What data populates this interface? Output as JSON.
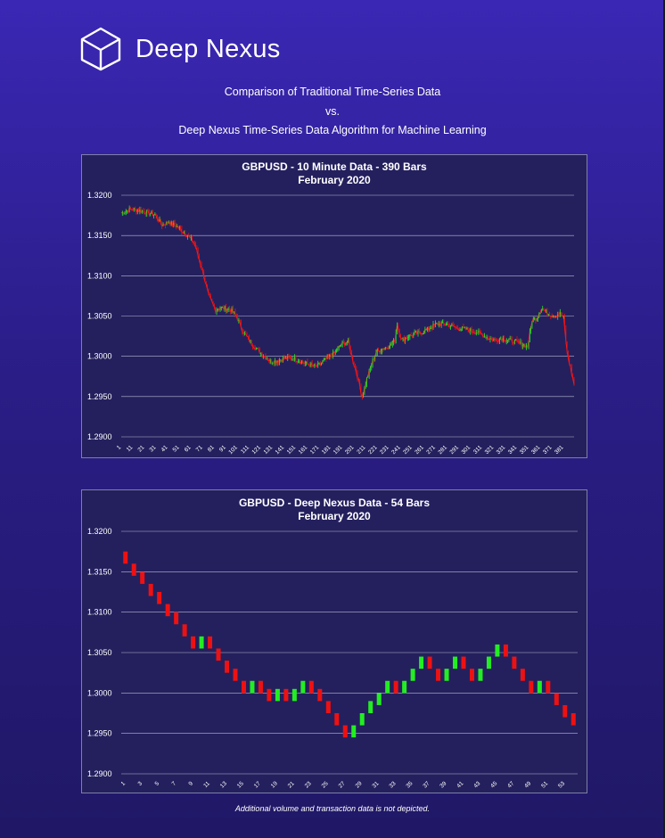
{
  "header": {
    "brand": "Deep Nexus",
    "subtitle_line1": "Comparison of Traditional Time-Series Data",
    "subtitle_line2": "vs.",
    "subtitle_line3": "Deep Nexus Time-Series Data Algorithm for Machine Learning"
  },
  "footnote": "Additional volume and transaction data is not depicted.",
  "colors": {
    "up": "#22ee22",
    "down": "#ee1111",
    "line": "#ff1a1a",
    "grid": "#b8b8d0"
  },
  "chart_data": [
    {
      "type": "candlestick",
      "title": "GBPUSD - 10 Minute Data - 390 Bars",
      "subtitle": "February 2020",
      "ylim": [
        1.29,
        1.32
      ],
      "y_ticks": [
        "1.3200",
        "1.3150",
        "1.3100",
        "1.3050",
        "1.3000",
        "1.2950",
        "1.2900"
      ],
      "x_ticks": [
        "1",
        "11",
        "21",
        "31",
        "41",
        "51",
        "61",
        "71",
        "81",
        "91",
        "101",
        "111",
        "121",
        "131",
        "141",
        "151",
        "161",
        "171",
        "181",
        "191",
        "201",
        "211",
        "221",
        "231",
        "241",
        "251",
        "261",
        "271",
        "281",
        "291",
        "301",
        "311",
        "321",
        "331",
        "341",
        "351",
        "361",
        "371",
        "381"
      ],
      "n_bars": 390,
      "close_keypoints": [
        [
          1,
          1.3178
        ],
        [
          10,
          1.3183
        ],
        [
          20,
          1.318
        ],
        [
          30,
          1.3176
        ],
        [
          36,
          1.3163
        ],
        [
          42,
          1.3167
        ],
        [
          50,
          1.316
        ],
        [
          58,
          1.315
        ],
        [
          64,
          1.314
        ],
        [
          68,
          1.312
        ],
        [
          72,
          1.31
        ],
        [
          76,
          1.3075
        ],
        [
          82,
          1.3058
        ],
        [
          88,
          1.306
        ],
        [
          95,
          1.3058
        ],
        [
          100,
          1.305
        ],
        [
          106,
          1.303
        ],
        [
          112,
          1.3018
        ],
        [
          118,
          1.3008
        ],
        [
          124,
          1.3
        ],
        [
          130,
          1.2993
        ],
        [
          136,
          1.2995
        ],
        [
          142,
          1.2998
        ],
        [
          150,
          1.2997
        ],
        [
          156,
          1.2993
        ],
        [
          162,
          1.299
        ],
        [
          168,
          1.2987
        ],
        [
          172,
          1.299
        ],
        [
          178,
          1.2998
        ],
        [
          185,
          1.3005
        ],
        [
          190,
          1.3015
        ],
        [
          196,
          1.3018
        ],
        [
          200,
          1.2995
        ],
        [
          204,
          1.2975
        ],
        [
          208,
          1.295
        ],
        [
          212,
          1.2972
        ],
        [
          216,
          1.299
        ],
        [
          220,
          1.3005
        ],
        [
          226,
          1.301
        ],
        [
          232,
          1.3013
        ],
        [
          236,
          1.302
        ],
        [
          238,
          1.304
        ],
        [
          242,
          1.302
        ],
        [
          248,
          1.3025
        ],
        [
          254,
          1.3028
        ],
        [
          260,
          1.303
        ],
        [
          266,
          1.3035
        ],
        [
          272,
          1.304
        ],
        [
          280,
          1.304
        ],
        [
          290,
          1.3035
        ],
        [
          300,
          1.3033
        ],
        [
          310,
          1.3028
        ],
        [
          316,
          1.3023
        ],
        [
          322,
          1.302
        ],
        [
          328,
          1.3022
        ],
        [
          334,
          1.302
        ],
        [
          340,
          1.3018
        ],
        [
          346,
          1.3015
        ],
        [
          350,
          1.3012
        ],
        [
          354,
          1.3045
        ],
        [
          358,
          1.3048
        ],
        [
          362,
          1.306
        ],
        [
          366,
          1.3055
        ],
        [
          372,
          1.305
        ],
        [
          378,
          1.3053
        ],
        [
          381,
          1.3048
        ],
        [
          384,
          1.3005
        ],
        [
          387,
          1.2985
        ],
        [
          390,
          1.2965
        ]
      ]
    },
    {
      "type": "candlestick",
      "title": "GBPUSD - Deep Nexus Data - 54 Bars",
      "subtitle": "February 2020",
      "ylim": [
        1.29,
        1.32
      ],
      "y_ticks": [
        "1.3200",
        "1.3150",
        "1.3100",
        "1.3050",
        "1.3000",
        "1.2950",
        "1.2900"
      ],
      "x_ticks": [
        "1",
        "3",
        "5",
        "7",
        "9",
        "11",
        "13",
        "15",
        "17",
        "19",
        "21",
        "23",
        "25",
        "27",
        "29",
        "31",
        "33",
        "35",
        "37",
        "39",
        "41",
        "43",
        "45",
        "47",
        "49",
        "51",
        "53"
      ],
      "bars": [
        [
          1.3175,
          1.316
        ],
        [
          1.316,
          1.3145
        ],
        [
          1.315,
          1.3135
        ],
        [
          1.3135,
          1.312
        ],
        [
          1.3125,
          1.311
        ],
        [
          1.311,
          1.3095
        ],
        [
          1.31,
          1.3085
        ],
        [
          1.3085,
          1.307
        ],
        [
          1.307,
          1.3055
        ],
        [
          1.3055,
          1.307
        ],
        [
          1.307,
          1.3055
        ],
        [
          1.3055,
          1.304
        ],
        [
          1.304,
          1.3025
        ],
        [
          1.303,
          1.3015
        ],
        [
          1.3015,
          1.3
        ],
        [
          1.3,
          1.3015
        ],
        [
          1.3015,
          1.3
        ],
        [
          1.3005,
          1.299
        ],
        [
          1.299,
          1.3005
        ],
        [
          1.3005,
          1.299
        ],
        [
          1.299,
          1.3005
        ],
        [
          1.3,
          1.3015
        ],
        [
          1.3015,
          1.3
        ],
        [
          1.3005,
          1.299
        ],
        [
          1.299,
          1.2975
        ],
        [
          1.2975,
          1.296
        ],
        [
          1.296,
          1.2945
        ],
        [
          1.2945,
          1.296
        ],
        [
          1.296,
          1.2975
        ],
        [
          1.2975,
          1.299
        ],
        [
          1.2985,
          1.3
        ],
        [
          1.3,
          1.3015
        ],
        [
          1.3015,
          1.3
        ],
        [
          1.3,
          1.3015
        ],
        [
          1.3015,
          1.303
        ],
        [
          1.303,
          1.3045
        ],
        [
          1.3045,
          1.303
        ],
        [
          1.303,
          1.3015
        ],
        [
          1.3015,
          1.303
        ],
        [
          1.303,
          1.3045
        ],
        [
          1.3045,
          1.303
        ],
        [
          1.303,
          1.3015
        ],
        [
          1.3015,
          1.303
        ],
        [
          1.303,
          1.3045
        ],
        [
          1.3045,
          1.306
        ],
        [
          1.306,
          1.3045
        ],
        [
          1.3045,
          1.303
        ],
        [
          1.303,
          1.3015
        ],
        [
          1.3015,
          1.3
        ],
        [
          1.3,
          1.3015
        ],
        [
          1.3015,
          1.3
        ],
        [
          1.3,
          1.2985
        ],
        [
          1.2985,
          1.297
        ],
        [
          1.2975,
          1.296
        ]
      ]
    }
  ]
}
